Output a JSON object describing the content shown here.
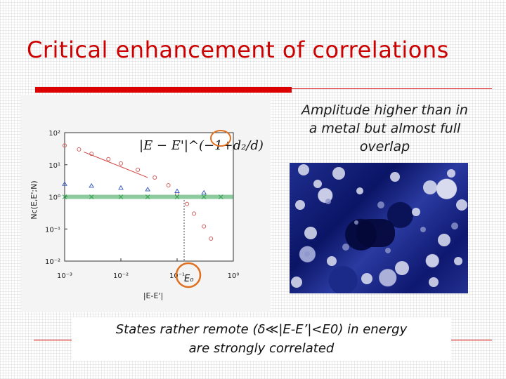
{
  "slide": {
    "title": "Critical enhancement of correlations",
    "caption_lines": [
      "Amplitude higher than in",
      "a metal but almost full",
      "overlap"
    ],
    "bottom_lines": [
      "States  rather remote (δ≪|E-E’|<E0) in energy",
      "are strongly correlated"
    ],
    "accent_color": "#dd0000"
  },
  "chart_data": {
    "type": "scatter",
    "x_scale": "log",
    "y_scale": "log",
    "xlim": [
      0.001,
      1
    ],
    "ylim": [
      0.01,
      100
    ],
    "xticks": [
      "10⁻³",
      "10⁻²",
      "10⁻¹",
      "10⁰"
    ],
    "yticks": [
      "10²",
      "10¹",
      "10⁰",
      "10⁻¹",
      "10⁻²"
    ],
    "xlabel": "|E-E'|",
    "ylabel": "Nc(E,E';N)",
    "formula_annotation": "|E − E'|^(−1+d₂/d)",
    "marker_annotation": "E₀",
    "series": [
      {
        "marker": "circle",
        "color": "#d06060",
        "x": [
          0.001,
          0.0018,
          0.003,
          0.006,
          0.01,
          0.02,
          0.04,
          0.07,
          0.1,
          0.15,
          0.2,
          0.3,
          0.4
        ],
        "y": [
          40,
          30,
          22,
          15,
          11,
          7,
          4,
          2.3,
          1.2,
          0.6,
          0.3,
          0.12,
          0.05
        ]
      },
      {
        "marker": "triangle",
        "color": "#4060c0",
        "x": [
          0.001,
          0.003,
          0.01,
          0.03,
          0.1,
          0.3
        ],
        "y": [
          2.5,
          2.2,
          1.9,
          1.7,
          1.5,
          1.35
        ]
      },
      {
        "marker": "cross",
        "color": "#30a050",
        "x": [
          0.001,
          0.003,
          0.01,
          0.03,
          0.1,
          0.3,
          0.6
        ],
        "y": [
          1,
          1,
          1,
          1,
          1,
          1,
          1
        ]
      },
      {
        "marker": "line",
        "color": "#d04040",
        "x": [
          0.0022,
          0.03
        ],
        "y": [
          25,
          4
        ]
      }
    ]
  }
}
